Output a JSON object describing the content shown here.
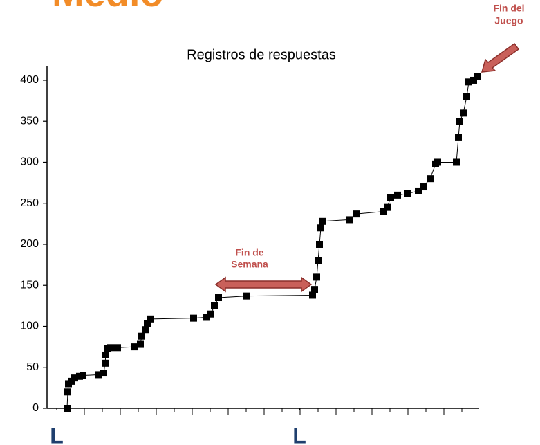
{
  "header": {
    "title": "Medio"
  },
  "chart_data": {
    "type": "line",
    "title": "Registros de respuestas",
    "x": [
      0.58,
      0.6,
      0.62,
      0.7,
      0.8,
      0.94,
      1.04,
      1.5,
      1.64,
      1.68,
      1.7,
      1.74,
      1.84,
      2.04,
      2.54,
      2.7,
      2.74,
      2.84,
      2.9,
      3.0,
      4.24,
      4.6,
      4.74,
      4.84,
      4.96,
      5.78,
      7.68,
      7.74,
      7.8,
      7.84,
      7.88,
      7.92,
      7.96,
      8.74,
      8.94,
      9.74,
      9.84,
      9.94,
      10.14,
      10.44,
      10.74,
      10.88,
      11.08,
      11.24,
      11.3,
      11.84,
      11.9,
      11.94,
      12.04,
      12.14,
      12.2,
      12.34,
      12.44
    ],
    "series": [
      {
        "name": "Registros",
        "color": "#000000",
        "values": [
          0,
          20,
          30,
          33,
          37,
          39,
          40,
          41,
          43,
          55,
          65,
          73,
          74,
          74,
          75,
          78,
          88,
          96,
          103,
          109,
          110,
          111,
          115,
          125,
          135,
          137,
          138,
          145,
          160,
          180,
          200,
          220,
          228,
          230,
          237,
          240,
          245,
          257,
          260,
          262,
          265,
          270,
          280,
          298,
          300,
          300,
          330,
          350,
          360,
          380,
          398,
          400,
          405
        ]
      }
    ],
    "xlim": [
      0,
      12.5
    ],
    "xticks": [
      {
        "value": 0.28,
        "label": "L"
      },
      {
        "value": 7.3,
        "label": "L"
      }
    ],
    "ylim": [
      0,
      416
    ],
    "yticks": [
      0,
      50,
      100,
      150,
      200,
      250,
      300,
      350,
      400
    ],
    "annotations": [
      {
        "lines": [
          "Fin de",
          "Semana"
        ]
      },
      {
        "lines": [
          "Fin del",
          "Juego"
        ]
      }
    ]
  }
}
